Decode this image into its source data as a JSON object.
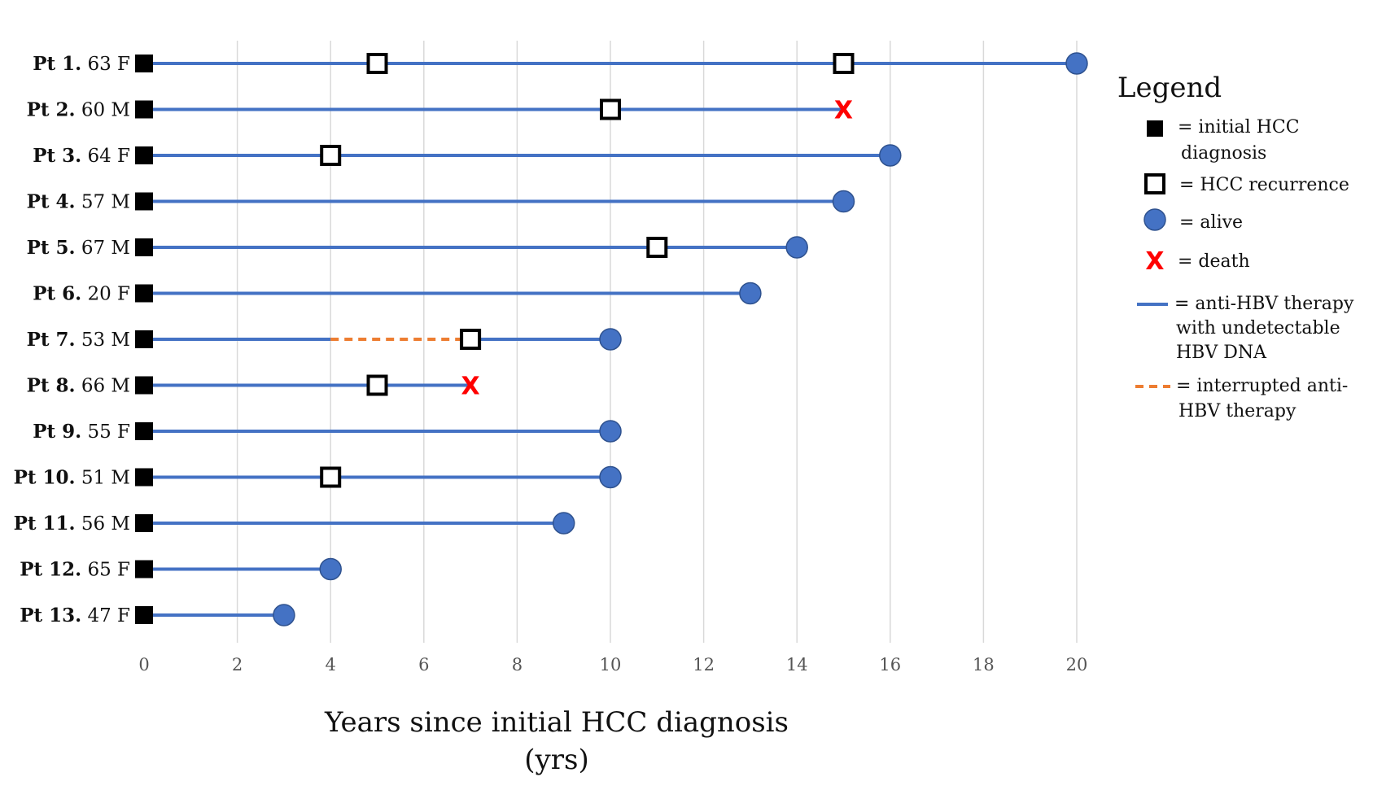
{
  "chart_data": {
    "type": "swimmer",
    "xlabel_line1": "Years since initial HCC diagnosis",
    "xlabel_line2": "(yrs)",
    "xlim": [
      0,
      20
    ],
    "xticks": [
      "0",
      "2",
      "4",
      "6",
      "8",
      "10",
      "12",
      "14",
      "16",
      "18",
      "20"
    ],
    "grid": "vertical",
    "legend_placement": "right",
    "colors": {
      "therapy": "#4472c4",
      "interrupted": "#ed7d31",
      "alive": "#4472c4",
      "death": "#ff0000",
      "initial": "#000000"
    },
    "patients": [
      {
        "id": "Pt 1.",
        "info": "63 F",
        "end": 20,
        "outcome": "alive",
        "recurrences": [
          5,
          15
        ],
        "interrupted": null
      },
      {
        "id": "Pt 2.",
        "info": "60 M",
        "end": 15,
        "outcome": "death",
        "recurrences": [
          10
        ],
        "interrupted": null
      },
      {
        "id": "Pt 3.",
        "info": "64 F",
        "end": 16,
        "outcome": "alive",
        "recurrences": [
          4
        ],
        "interrupted": null
      },
      {
        "id": "Pt 4.",
        "info": "57 M",
        "end": 15,
        "outcome": "alive",
        "recurrences": [],
        "interrupted": null
      },
      {
        "id": "Pt 5.",
        "info": "67 M",
        "end": 14,
        "outcome": "alive",
        "recurrences": [
          11
        ],
        "interrupted": null
      },
      {
        "id": "Pt 6.",
        "info": "20 F",
        "end": 13,
        "outcome": "alive",
        "recurrences": [],
        "interrupted": null
      },
      {
        "id": "Pt 7.",
        "info": "53 M",
        "end": 10,
        "outcome": "alive",
        "recurrences": [
          7
        ],
        "interrupted": [
          4,
          7
        ]
      },
      {
        "id": "Pt 8.",
        "info": "66 M",
        "end": 7,
        "outcome": "death",
        "recurrences": [
          5
        ],
        "interrupted": null
      },
      {
        "id": "Pt 9.",
        "info": "55 F",
        "end": 10,
        "outcome": "alive",
        "recurrences": [],
        "interrupted": null
      },
      {
        "id": "Pt 10.",
        "info": "51 M",
        "end": 10,
        "outcome": "alive",
        "recurrences": [
          4
        ],
        "interrupted": null
      },
      {
        "id": "Pt 11.",
        "info": "56 M",
        "end": 9,
        "outcome": "alive",
        "recurrences": [],
        "interrupted": null
      },
      {
        "id": "Pt 12.",
        "info": "65 F",
        "end": 4,
        "outcome": "alive",
        "recurrences": [],
        "interrupted": null
      },
      {
        "id": "Pt 13.",
        "info": "47 F",
        "end": 3,
        "outcome": "alive",
        "recurrences": [],
        "interrupted": null
      }
    ]
  },
  "legend": {
    "title": "Legend",
    "death_symbol": "X",
    "items": [
      {
        "key": "initial",
        "lines": [
          "= initial HCC",
          "diagnosis"
        ]
      },
      {
        "key": "recurrence",
        "lines": [
          "= HCC recurrence"
        ]
      },
      {
        "key": "alive",
        "lines": [
          "= alive"
        ]
      },
      {
        "key": "death",
        "lines": [
          "= death"
        ]
      },
      {
        "key": "therapy",
        "lines": [
          "= anti-HBV therapy",
          "with undetectable",
          "HBV DNA"
        ]
      },
      {
        "key": "interrupted",
        "lines": [
          "= interrupted anti-",
          "HBV therapy"
        ]
      }
    ]
  }
}
